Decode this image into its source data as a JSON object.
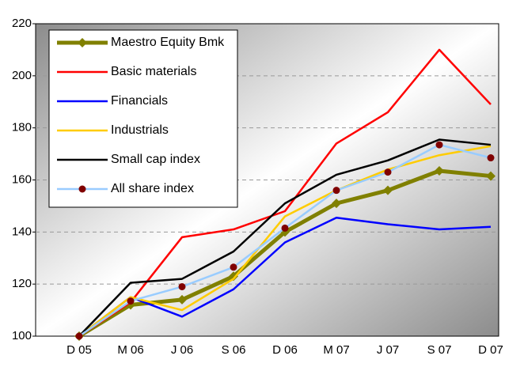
{
  "chart_data": {
    "type": "line",
    "categories": [
      "D 05",
      "M 06",
      "J 06",
      "S 06",
      "D 06",
      "M 07",
      "J 07",
      "S 07",
      "D 07"
    ],
    "series": [
      {
        "name": "Maestro Equity Bmk",
        "color": "#808000",
        "marker": "diamond",
        "values": [
          100,
          112,
          114,
          123,
          140,
          151,
          156,
          163.5,
          161.5
        ]
      },
      {
        "name": "Basic materials",
        "color": "#ff0000",
        "values": [
          100,
          113,
          138,
          141,
          148,
          174,
          186,
          210,
          189
        ]
      },
      {
        "name": "Financials",
        "color": "#0000ff",
        "values": [
          100,
          115,
          107.5,
          118,
          136,
          145.5,
          143,
          141,
          142
        ]
      },
      {
        "name": "Industrials",
        "color": "#ffcc00",
        "values": [
          100,
          115,
          110,
          122,
          146,
          156,
          164,
          169.5,
          173
        ]
      },
      {
        "name": "Small cap index",
        "color": "#000000",
        "values": [
          100,
          120.5,
          122,
          132.5,
          151,
          162,
          167.5,
          175.5,
          173.5
        ]
      },
      {
        "name": "All share index",
        "color": "#99ccff",
        "marker": "circle",
        "marker_color": "#800000",
        "values": [
          100,
          113.5,
          119,
          126.5,
          141.5,
          156,
          163,
          173.5,
          168.5
        ]
      }
    ],
    "ylim": [
      100,
      220
    ],
    "yticks": [
      100,
      120,
      140,
      160,
      180,
      200,
      220
    ],
    "grid": true,
    "legend": "upper left"
  }
}
